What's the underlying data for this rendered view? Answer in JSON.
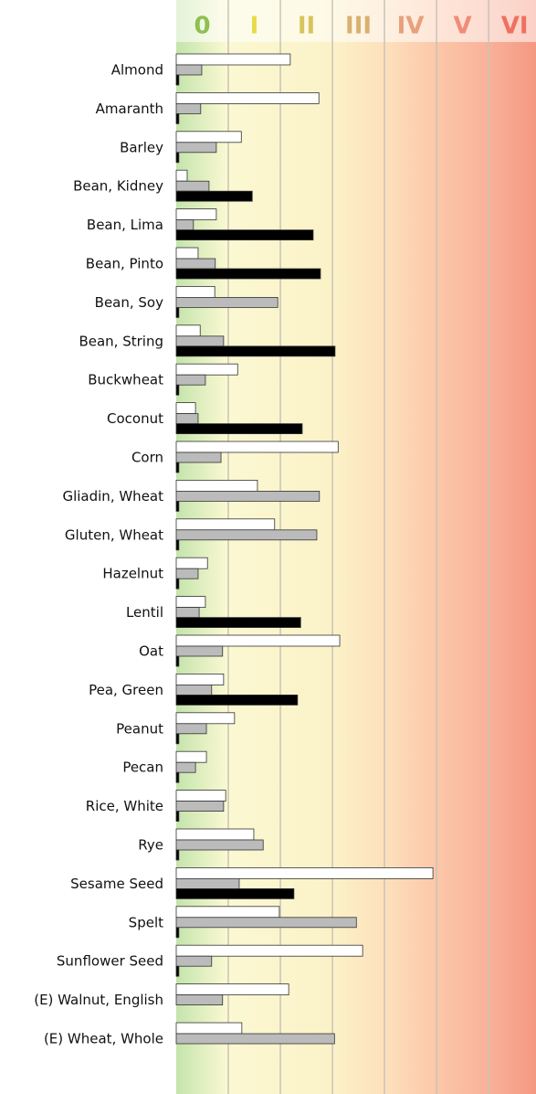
{
  "chart_data": {
    "type": "bar",
    "orientation": "horizontal",
    "categories": [
      "Almond",
      "Amaranth",
      "Barley",
      "Bean, Kidney",
      "Bean, Lima",
      "Bean, Pinto",
      "Bean, Soy",
      "Bean, String",
      "Buckwheat",
      "Coconut",
      "Corn",
      "Gliadin, Wheat",
      "Gluten, Wheat",
      "Hazelnut",
      "Lentil",
      "Oat",
      "Pea, Green",
      "Peanut",
      "Pecan",
      "Rice, White",
      "Rye",
      "Sesame Seed",
      "Spelt",
      "Sunflower Seed",
      "(E) Walnut, English",
      "(E) Wheat, Whole"
    ],
    "series": [
      {
        "color": "#ffffff",
        "values": [
          2.19,
          2.74,
          1.25,
          0.21,
          0.77,
          0.42,
          0.74,
          0.46,
          1.18,
          0.37,
          3.11,
          1.56,
          1.89,
          0.6,
          0.56,
          3.14,
          0.91,
          1.12,
          0.58,
          0.95,
          1.49,
          4.93,
          1.98,
          3.58,
          2.16,
          1.26
        ]
      },
      {
        "color": "#bbbbbb",
        "values": [
          0.49,
          0.47,
          0.77,
          0.63,
          0.33,
          0.75,
          1.95,
          0.91,
          0.56,
          0.42,
          0.86,
          2.75,
          2.7,
          0.42,
          0.44,
          0.89,
          0.68,
          0.58,
          0.37,
          0.91,
          1.67,
          1.21,
          3.46,
          0.68,
          0.89,
          3.04
        ]
      },
      {
        "color": "#000000",
        "values": [
          0.05,
          0.05,
          0.05,
          1.46,
          2.63,
          2.77,
          0.05,
          3.05,
          0.05,
          2.42,
          0.05,
          0.05,
          0.05,
          0.05,
          2.39,
          0.05,
          2.33,
          0.05,
          0.05,
          0.05,
          0.05,
          2.26,
          0.05,
          0.05,
          null,
          null
        ]
      }
    ],
    "xlim": [
      0,
      6.91
    ],
    "xticks": [
      1,
      2,
      3,
      4,
      5,
      6
    ],
    "class_labels": [
      {
        "value": 0.5,
        "label": "0",
        "color": "#8cc050"
      },
      {
        "value": 1.5,
        "label": "I",
        "color": "#e6dc4a"
      },
      {
        "value": 2.5,
        "label": "II",
        "color": "#d8c45c"
      },
      {
        "value": 3.5,
        "label": "III",
        "color": "#d8b070"
      },
      {
        "value": 4.5,
        "label": "IV",
        "color": "#e8a07c"
      },
      {
        "value": 5.5,
        "label": "V",
        "color": "#f08c78"
      },
      {
        "value": 6.5,
        "label": "VI",
        "color": "#f07060"
      }
    ],
    "grid": true
  }
}
